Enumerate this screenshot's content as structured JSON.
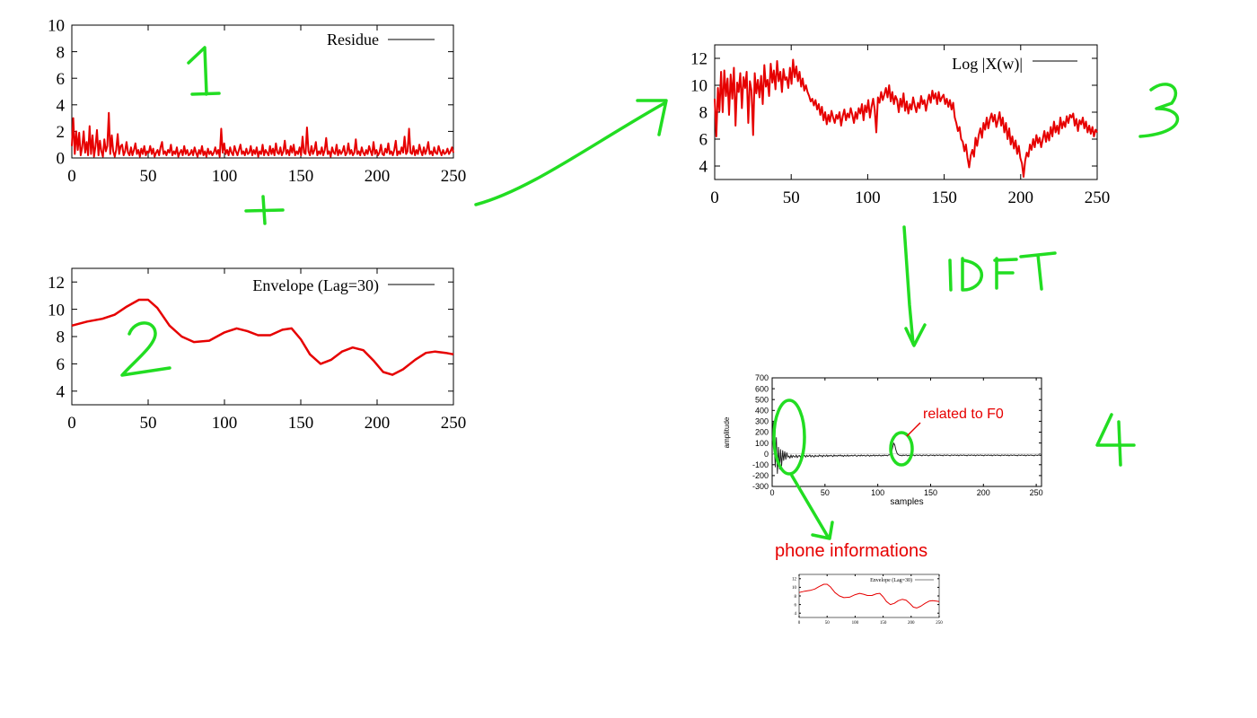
{
  "chart_data": [
    {
      "id": "residue",
      "type": "line",
      "series": [
        {
          "name": "Residue",
          "color": "#e60000"
        }
      ],
      "xlim": [
        0,
        250
      ],
      "ylim": [
        0,
        10
      ],
      "x_ticks": [
        "0",
        "50",
        "100",
        "150",
        "200",
        "250"
      ],
      "y_ticks": [
        "0",
        "2",
        "4",
        "6",
        "8",
        "10"
      ],
      "values": [
        0.9,
        3.0,
        0.3,
        2.0,
        0.6,
        1.9,
        0.2,
        0.8,
        2.0,
        0.4,
        1.2,
        0.2,
        2.4,
        0.3,
        1.7,
        0.1,
        0.9,
        2.1,
        0.2,
        1.3,
        0.5,
        0.1,
        1.4,
        0.5,
        0.9,
        3.4,
        0.3,
        1.7,
        0.5,
        0.1,
        0.6,
        1.8,
        0.3,
        0.9,
        1.0,
        0.2,
        0.5,
        1.2,
        0.4,
        0.2,
        0.8,
        0.2,
        0.6,
        1.1,
        0.3,
        0.6,
        0.1,
        0.7,
        0.3,
        0.9,
        0.2,
        0.5,
        0.4,
        0.9,
        0.3,
        0.7,
        0.1,
        0.4,
        0.6,
        0.2,
        0.8,
        1.2,
        0.3,
        0.5,
        0.2,
        0.6,
        0.4,
        1.0,
        0.2,
        0.5,
        0.3,
        0.8,
        0.1,
        0.4,
        0.6,
        0.2,
        0.9,
        0.3,
        0.6,
        0.2,
        0.3,
        0.6,
        0.2,
        0.8,
        0.4,
        0.1,
        0.6,
        0.3,
        0.9,
        0.2,
        0.5,
        0.1,
        0.7,
        0.3,
        0.5,
        0.2,
        0.4,
        0.8,
        0.3,
        0.6,
        0.1,
        2.2,
        0.4,
        1.1,
        0.3,
        0.6,
        0.2,
        0.8,
        0.4,
        0.2,
        0.9,
        0.5,
        0.2,
        0.6,
        1.0,
        0.3,
        0.5,
        0.2,
        0.7,
        0.3,
        0.4,
        0.9,
        0.2,
        0.6,
        0.3,
        0.8,
        0.1,
        0.5,
        0.3,
        1.0,
        0.2,
        0.6,
        0.4,
        0.2,
        0.9,
        0.3,
        0.7,
        0.2,
        1.1,
        0.4,
        0.3,
        0.8,
        0.2,
        0.5,
        1.3,
        0.3,
        0.6,
        0.2,
        0.9,
        0.4,
        1.0,
        0.2,
        0.5,
        0.3,
        0.8,
        0.2,
        1.6,
        0.4,
        0.3,
        2.3,
        0.5,
        0.2,
        0.9,
        0.3,
        0.6,
        1.2,
        0.2,
        0.5,
        0.3,
        0.8,
        0.2,
        0.6,
        1.5,
        0.3,
        0.5,
        0.1,
        0.8,
        0.4,
        0.3,
        1.0,
        0.2,
        0.6,
        0.3,
        0.5,
        0.9,
        0.2,
        0.4,
        1.1,
        0.3,
        0.6,
        0.2,
        0.4,
        1.4,
        0.3,
        0.5,
        0.2,
        0.8,
        0.4,
        0.2,
        0.6,
        0.3,
        0.9,
        0.5,
        0.2,
        1.2,
        0.3,
        0.6,
        0.2,
        0.4,
        1.0,
        0.3,
        0.2,
        0.7,
        0.4,
        1.1,
        0.3,
        0.5,
        0.2,
        0.6,
        1.3,
        0.2,
        0.5,
        0.3,
        0.8,
        0.4,
        1.6,
        0.3,
        0.5,
        2.2,
        0.4,
        0.3,
        0.9,
        0.2,
        0.6,
        0.3,
        1.0,
        0.5,
        0.2,
        0.8,
        0.3,
        0.6,
        1.2,
        0.3,
        0.5,
        0.2,
        0.8,
        0.4,
        0.3,
        0.9,
        0.5,
        0.2,
        0.6,
        0.3,
        0.4,
        0.7,
        0.3,
        0.5,
        0.8,
        0.4
      ]
    },
    {
      "id": "envelope",
      "type": "line",
      "series": [
        {
          "name": "Envelope (Lag=30)",
          "color": "#e60000"
        }
      ],
      "xlim": [
        0,
        250
      ],
      "ylim": [
        3,
        13
      ],
      "x_ticks": [
        "0",
        "50",
        "100",
        "150",
        "200",
        "250"
      ],
      "y_ticks": [
        "4",
        "6",
        "8",
        "10",
        "12"
      ],
      "points": [
        [
          0,
          8.8
        ],
        [
          10,
          9.1
        ],
        [
          20,
          9.3
        ],
        [
          28,
          9.6
        ],
        [
          36,
          10.2
        ],
        [
          44,
          10.7
        ],
        [
          50,
          10.7
        ],
        [
          56,
          10.1
        ],
        [
          64,
          8.8
        ],
        [
          72,
          8.0
        ],
        [
          80,
          7.6
        ],
        [
          90,
          7.7
        ],
        [
          100,
          8.3
        ],
        [
          108,
          8.6
        ],
        [
          115,
          8.4
        ],
        [
          122,
          8.1
        ],
        [
          130,
          8.1
        ],
        [
          138,
          8.5
        ],
        [
          144,
          8.6
        ],
        [
          150,
          7.8
        ],
        [
          156,
          6.7
        ],
        [
          163,
          6.0
        ],
        [
          170,
          6.3
        ],
        [
          177,
          6.9
        ],
        [
          184,
          7.2
        ],
        [
          191,
          7.0
        ],
        [
          198,
          6.2
        ],
        [
          204,
          5.4
        ],
        [
          210,
          5.2
        ],
        [
          217,
          5.6
        ],
        [
          225,
          6.3
        ],
        [
          232,
          6.8
        ],
        [
          238,
          6.9
        ],
        [
          245,
          6.8
        ],
        [
          250,
          6.7
        ]
      ]
    },
    {
      "id": "logspec",
      "type": "line",
      "series": [
        {
          "name": "Log |X(w)|",
          "color": "#e60000"
        }
      ],
      "xlim": [
        0,
        250
      ],
      "ylim": [
        3,
        13
      ],
      "x_ticks": [
        "0",
        "50",
        "100",
        "150",
        "200",
        "250"
      ],
      "y_ticks": [
        "4",
        "6",
        "8",
        "10",
        "12"
      ],
      "values": [
        9.0,
        6.2,
        9.8,
        8.1,
        11.0,
        8.0,
        11.1,
        9.2,
        10.5,
        7.8,
        10.8,
        9.0,
        11.3,
        7.0,
        10.2,
        9.5,
        10.9,
        8.3,
        10.6,
        9.8,
        11.0,
        7.2,
        10.3,
        9.6,
        6.3,
        10.9,
        9.4,
        10.4,
        9.1,
        10.7,
        8.6,
        11.5,
        9.9,
        10.4,
        9.2,
        11.6,
        10.2,
        11.1,
        9.7,
        11.8,
        10.3,
        11.0,
        9.5,
        11.2,
        10.4,
        10.6,
        9.8,
        11.3,
        10.1,
        11.9,
        10.6,
        11.4,
        10.3,
        11.0,
        9.9,
        10.5,
        9.6,
        10.0,
        9.5,
        9.2,
        8.8,
        9.0,
        8.5,
        8.9,
        8.2,
        8.6,
        7.8,
        8.4,
        7.4,
        8.0,
        7.1,
        7.8,
        7.3,
        8.1,
        7.6,
        7.2,
        7.8,
        7.5,
        8.0,
        7.0,
        7.7,
        8.2,
        7.4,
        7.9,
        7.6,
        8.3,
        7.8,
        7.2,
        8.0,
        7.5,
        8.3,
        7.9,
        8.6,
        7.4,
        8.5,
        8.0,
        8.9,
        7.6,
        8.4,
        9.0,
        8.2,
        6.5,
        9.1,
        8.7,
        9.5,
        8.9,
        9.3,
        9.8,
        9.1,
        10.0,
        8.8,
        9.5,
        8.6,
        9.2,
        8.9,
        8.0,
        9.0,
        8.4,
        9.4,
        8.1,
        8.8,
        7.9,
        8.6,
        8.2,
        9.1,
        8.5,
        8.0,
        8.7,
        8.3,
        9.2,
        8.6,
        8.9,
        8.1,
        8.8,
        9.3,
        8.7,
        9.6,
        9.0,
        9.4,
        8.6,
        9.5,
        8.8,
        9.1,
        9.3,
        8.6,
        9.0,
        8.4,
        8.9,
        8.2,
        8.7,
        7.6,
        7.2,
        6.6,
        6.9,
        6.0,
        5.8,
        5.1,
        5.6,
        4.6,
        3.9,
        4.8,
        5.2,
        4.7,
        6.1,
        5.5,
        6.3,
        6.8,
        6.1,
        7.2,
        6.7,
        7.6,
        6.8,
        7.5,
        7.9,
        7.3,
        7.8,
        6.9,
        7.4,
        8.0,
        7.0,
        7.6,
        6.5,
        7.2,
        6.0,
        6.8,
        5.6,
        6.2,
        5.3,
        5.9,
        4.9,
        5.5,
        4.6,
        4.2,
        3.2,
        4.4,
        5.0,
        4.7,
        5.6,
        5.2,
        6.0,
        5.4,
        6.3,
        5.7,
        6.1,
        5.4,
        6.0,
        6.6,
        5.8,
        6.5,
        5.9,
        6.9,
        6.2,
        7.3,
        6.5,
        7.0,
        6.4,
        7.6,
        6.8,
        7.3,
        6.9,
        7.7,
        7.2,
        7.8,
        7.6,
        7.9,
        7.0,
        7.5,
        6.6,
        7.4,
        7.1,
        7.6,
        6.8,
        7.3,
        6.5,
        7.0,
        6.4,
        6.9,
        6.2,
        6.7,
        6.5
      ]
    },
    {
      "id": "cepstrum",
      "type": "line",
      "series": [
        {
          "name": "",
          "color": "#222222"
        }
      ],
      "xlabel": "samples",
      "ylabel": "amplitude",
      "xlim": [
        0,
        255
      ],
      "ylim": [
        -300,
        700
      ],
      "x_ticks": [
        "0",
        "50",
        "100",
        "150",
        "200",
        "250"
      ],
      "y_ticks": [
        "700",
        "600",
        "500",
        "400",
        "300",
        "200",
        "100",
        "0",
        "-100",
        "-200",
        "-300"
      ],
      "values": [
        120,
        300,
        90,
        -120,
        150,
        -180,
        60,
        -140,
        40,
        -110,
        30,
        -60,
        20,
        -50,
        10,
        -30,
        -20,
        -40,
        -10,
        -35,
        -15,
        -25,
        -30,
        -10,
        -35,
        -20,
        -15,
        -30,
        -10,
        -25,
        -20,
        -15,
        -30,
        -12,
        -25,
        -18,
        -10,
        -28,
        -15,
        -20,
        -30,
        -12,
        -22,
        -18,
        -25,
        -10,
        -20,
        -15,
        -28,
        -12,
        -18,
        -22,
        -10,
        -25,
        -15,
        -20,
        -12,
        -18,
        -25,
        -10,
        -20,
        -15,
        -22,
        -12,
        -18,
        -10,
        -20,
        -15,
        -25,
        -12,
        -18,
        -20,
        -10,
        -22,
        -15,
        -18,
        -12,
        -20,
        -15,
        -10,
        -18,
        -22,
        -12,
        -15,
        -20,
        -10,
        -18,
        -15,
        -12,
        -20,
        -18,
        -10,
        -15,
        -22,
        -12,
        -18,
        -15,
        -10,
        -20,
        -12,
        -15,
        -18,
        -10,
        -15,
        -20,
        -12,
        -18,
        -10,
        -15,
        -12,
        -18,
        -10,
        -8,
        0,
        20,
        60,
        100,
        80,
        40,
        10,
        -5,
        -10,
        -15,
        -12,
        -18,
        -10,
        -15,
        -12,
        -10,
        -18,
        -12,
        -15,
        -10,
        -12,
        -15,
        -10,
        -18,
        -12,
        -10,
        -15,
        -12,
        -10,
        -15,
        -18,
        -10,
        -12,
        -15,
        -10,
        -12,
        -18,
        -15,
        -10,
        -12,
        -15,
        -10,
        -18,
        -12,
        -10,
        -15,
        -12,
        -10,
        -15,
        -12,
        -18,
        -10,
        -12,
        -15,
        -10,
        -12,
        -15,
        -18,
        -10,
        -12,
        -15,
        -10,
        -12,
        -15,
        -10,
        -18,
        -12,
        -10,
        -15,
        -12,
        -10,
        -15,
        -12,
        -18,
        -10,
        -12,
        -15,
        -10,
        -12,
        -15,
        -10,
        -18,
        -12,
        -10,
        -15,
        -12,
        -10,
        -15,
        -12,
        -18,
        -10,
        -12,
        -15,
        -10,
        -12,
        -15,
        -10,
        -18,
        -12,
        -10,
        -15,
        -12,
        -10,
        -15,
        -12,
        -18,
        -10,
        -12,
        -15,
        -10,
        -12,
        -15,
        -10,
        -18,
        -12,
        -10,
        -15,
        -12,
        -10,
        -15,
        -12,
        -18,
        -10,
        -12,
        -15,
        -10,
        -12,
        -15,
        -10,
        -18,
        -12,
        -10,
        -15,
        -12,
        -10,
        -15,
        -12,
        -18,
        -10,
        -12,
        -15,
        -10,
        -12,
        -15,
        -10
      ]
    },
    {
      "id": "envelope_thumb",
      "type": "line",
      "series": [
        {
          "name": "Envelope (Lag=30)",
          "color": "#e60000"
        }
      ],
      "xlim": [
        0,
        250
      ],
      "ylim": [
        3,
        13
      ],
      "x_ticks": [
        "0",
        "50",
        "100",
        "150",
        "200",
        "250"
      ],
      "y_ticks": [
        "4",
        "6",
        "8",
        "10",
        "12"
      ],
      "points": [
        [
          0,
          8.8
        ],
        [
          10,
          9.1
        ],
        [
          20,
          9.3
        ],
        [
          28,
          9.6
        ],
        [
          36,
          10.2
        ],
        [
          44,
          10.7
        ],
        [
          50,
          10.7
        ],
        [
          56,
          10.1
        ],
        [
          64,
          8.8
        ],
        [
          72,
          8.0
        ],
        [
          80,
          7.6
        ],
        [
          90,
          7.7
        ],
        [
          100,
          8.3
        ],
        [
          108,
          8.6
        ],
        [
          115,
          8.4
        ],
        [
          122,
          8.1
        ],
        [
          130,
          8.1
        ],
        [
          138,
          8.5
        ],
        [
          144,
          8.6
        ],
        [
          150,
          7.8
        ],
        [
          156,
          6.7
        ],
        [
          163,
          6.0
        ],
        [
          170,
          6.3
        ],
        [
          177,
          6.9
        ],
        [
          184,
          7.2
        ],
        [
          191,
          7.0
        ],
        [
          198,
          6.2
        ],
        [
          204,
          5.4
        ],
        [
          210,
          5.2
        ],
        [
          217,
          5.6
        ],
        [
          225,
          6.3
        ],
        [
          232,
          6.8
        ],
        [
          238,
          6.9
        ],
        [
          245,
          6.8
        ],
        [
          250,
          6.7
        ]
      ]
    }
  ],
  "annotations": {
    "step1": "1",
    "step2": "2",
    "step3": "3",
    "step4": "4",
    "plus": "+",
    "idft": "IDFT",
    "f0_label": "related to F0",
    "phone_label": "phone informations",
    "handwriting_color": "#22dd22",
    "label_color": "#e60000"
  }
}
